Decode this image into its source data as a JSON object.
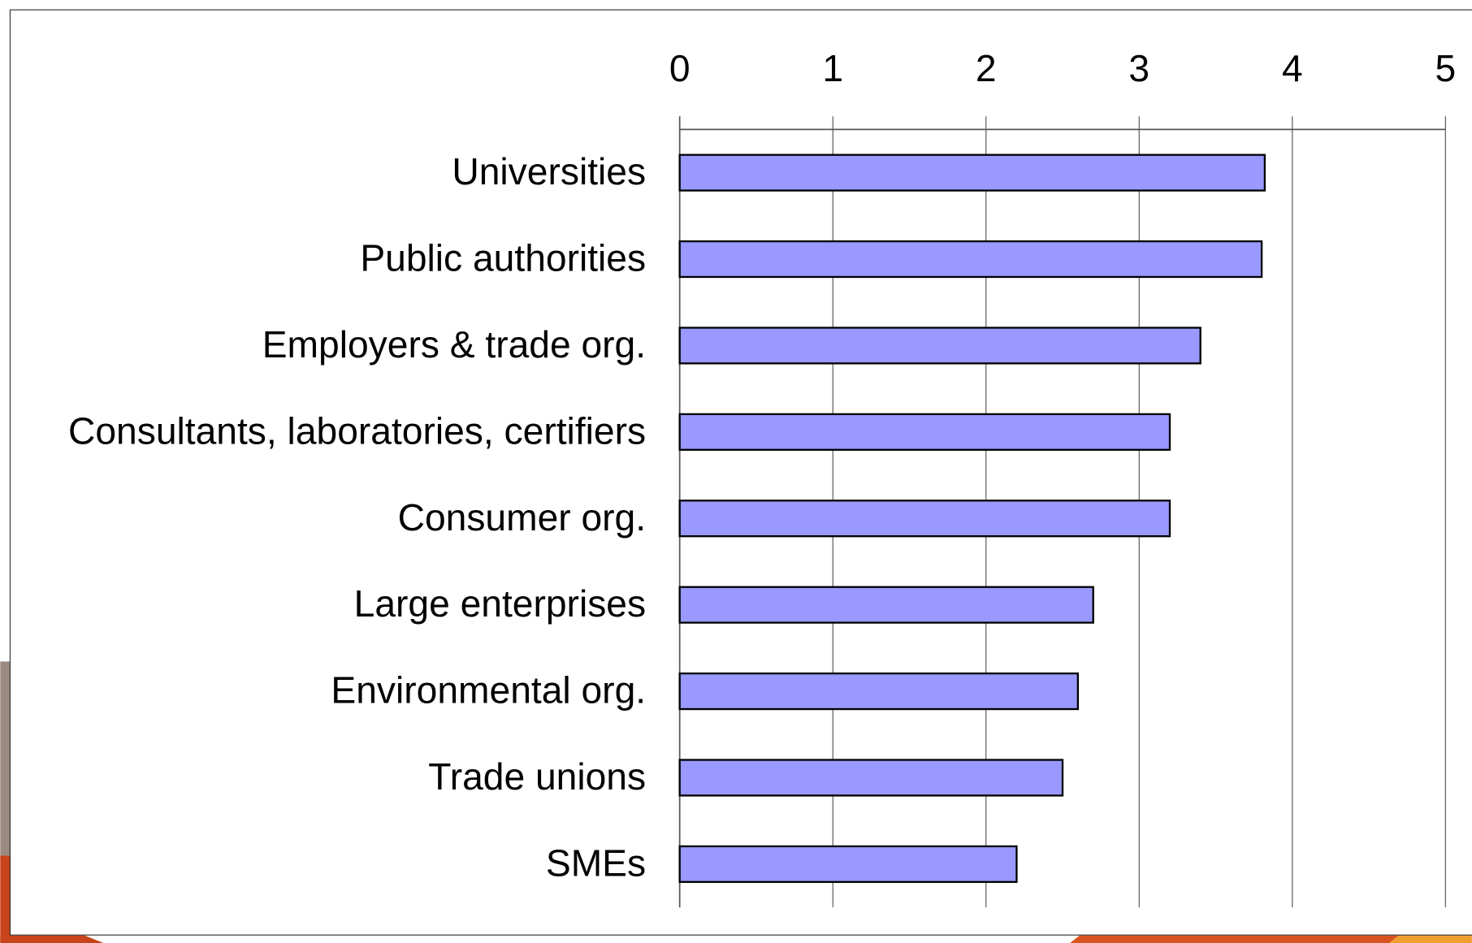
{
  "chart_data": {
    "type": "bar",
    "orientation": "horizontal",
    "categories": [
      "Universities",
      "Public authorities",
      "Employers & trade org.",
      "Consultants, laboratories, certifiers",
      "Consumer org.",
      "Large enterprises",
      "Environmental org.",
      "Trade unions",
      "SMEs"
    ],
    "values": [
      3.82,
      3.8,
      3.4,
      3.2,
      3.2,
      2.7,
      2.6,
      2.5,
      2.2
    ],
    "color": "#9999ff",
    "xlim": [
      0,
      5
    ],
    "xticks": [
      0,
      1,
      2,
      3,
      4,
      5
    ],
    "grid": true
  }
}
